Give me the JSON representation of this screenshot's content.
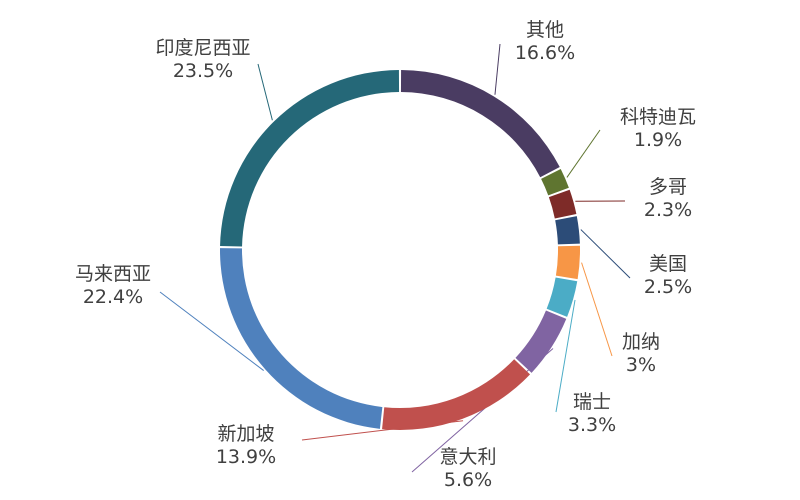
{
  "chart_data": {
    "type": "pie",
    "donut": true,
    "title": "",
    "categories": [
      "其他",
      "科特迪瓦",
      "多哥",
      "美国",
      "加纳",
      "瑞士",
      "意大利",
      "新加坡",
      "马来西亚",
      "印度尼西亚"
    ],
    "values": [
      16.6,
      1.9,
      2.3,
      2.5,
      3,
      3.3,
      5.6,
      13.9,
      22.4,
      23.5
    ],
    "value_labels": [
      "16.6%",
      "1.9%",
      "2.3%",
      "2.5%",
      "3%",
      "3.3%",
      "5.6%",
      "13.9%",
      "22.4%",
      "23.5%"
    ],
    "unit": "%",
    "colors": [
      "#4a3c62",
      "#5f7530",
      "#7e2b28",
      "#2c4c78",
      "#f79646",
      "#4bacc6",
      "#8064a2",
      "#c0504d",
      "#4f81bd",
      "#256878"
    ],
    "legend": "none",
    "labels_position": "outside-with-leader-lines"
  }
}
